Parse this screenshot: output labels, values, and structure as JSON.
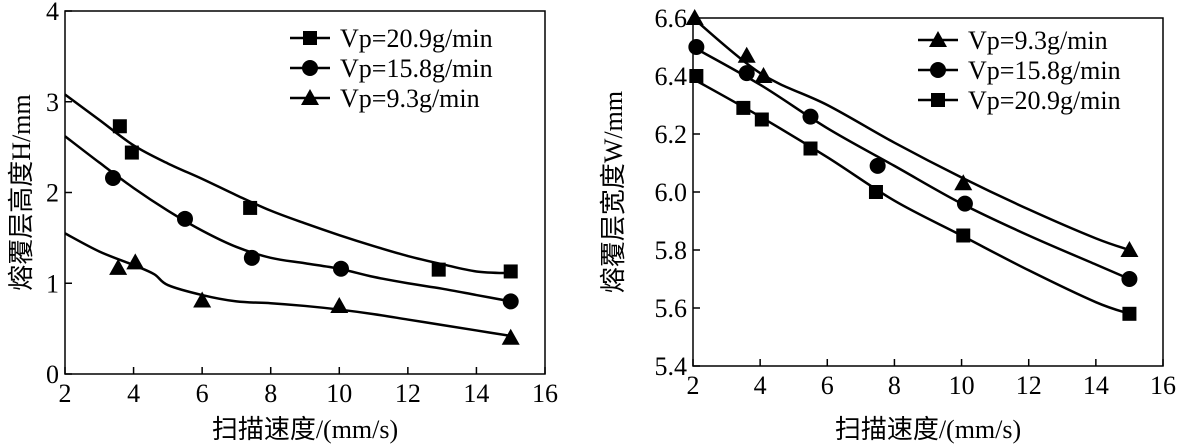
{
  "chart_data": [
    {
      "type": "line",
      "title": "",
      "xlabel": "扫描速度/(mm/s)",
      "ylabel": "熔覆层高度H/mm",
      "xlim": [
        2,
        16
      ],
      "ylim": [
        0,
        4
      ],
      "xticks": [
        2,
        4,
        6,
        8,
        10,
        12,
        14,
        16
      ],
      "yticks": [
        0,
        1,
        2,
        3,
        4
      ],
      "legend": "top-right",
      "series": [
        {
          "name": "Vp=20.9g/min",
          "marker": "square",
          "x": [
            3.6,
            3.95,
            7.4,
            12.9,
            15
          ],
          "y": [
            2.73,
            2.44,
            1.83,
            1.15,
            1.13
          ],
          "fit_x": [
            2,
            3,
            4,
            5,
            6,
            7,
            8,
            9,
            10,
            11,
            12,
            13,
            14,
            15
          ],
          "fit_y": [
            3.08,
            2.8,
            2.52,
            2.32,
            2.15,
            1.97,
            1.8,
            1.66,
            1.53,
            1.41,
            1.3,
            1.21,
            1.13,
            1.11
          ]
        },
        {
          "name": "Vp=15.8g/min",
          "marker": "circle",
          "x": [
            3.4,
            5.5,
            7.45,
            10.05,
            15
          ],
          "y": [
            2.16,
            1.71,
            1.28,
            1.16,
            0.8
          ],
          "fit_x": [
            2,
            3,
            4,
            5,
            6,
            7,
            8,
            9,
            10,
            11,
            12,
            13,
            14,
            15
          ],
          "fit_y": [
            2.62,
            2.33,
            2.05,
            1.8,
            1.58,
            1.4,
            1.28,
            1.22,
            1.16,
            1.07,
            1.0,
            0.94,
            0.87,
            0.8
          ]
        },
        {
          "name": "Vp=9.3g/min",
          "marker": "triangle",
          "x": [
            3.55,
            4.05,
            6,
            10,
            15
          ],
          "y": [
            1.17,
            1.23,
            0.81,
            0.75,
            0.4
          ],
          "fit_x": [
            2,
            3,
            4,
            4.6,
            5,
            6,
            7,
            8,
            9,
            10,
            11,
            12,
            13,
            14,
            15
          ],
          "fit_y": [
            1.55,
            1.35,
            1.2,
            1.1,
            0.98,
            0.87,
            0.8,
            0.78,
            0.75,
            0.71,
            0.66,
            0.6,
            0.54,
            0.48,
            0.42
          ]
        }
      ]
    },
    {
      "type": "line",
      "title": "",
      "xlabel": "扫描速度/(mm/s)",
      "ylabel": "熔覆层宽度W/mm",
      "xlim": [
        2,
        16
      ],
      "ylim": [
        5.4,
        6.6
      ],
      "xticks": [
        2,
        4,
        6,
        8,
        10,
        12,
        14,
        16
      ],
      "yticks": [
        "5.4",
        "5.6",
        "5.8",
        "6.0",
        "6.2",
        "6.4",
        "6.6"
      ],
      "legend": "top-right",
      "series": [
        {
          "name": "Vp=9.3g/min",
          "marker": "triangle",
          "x": [
            2.05,
            3.6,
            4.1,
            10.05,
            15
          ],
          "y": [
            6.6,
            6.47,
            6.4,
            6.03,
            5.8
          ],
          "fit_x": [
            2,
            4,
            6,
            8,
            10,
            12,
            14,
            15
          ],
          "fit_y": [
            6.6,
            6.41,
            6.3,
            6.17,
            6.05,
            5.94,
            5.84,
            5.8
          ]
        },
        {
          "name": "Vp=15.8g/min",
          "marker": "circle",
          "x": [
            2.1,
            3.6,
            5.5,
            7.5,
            10.1,
            15
          ],
          "y": [
            6.5,
            6.41,
            6.26,
            6.09,
            5.96,
            5.7
          ],
          "fit_x": [
            2,
            4,
            6,
            8,
            10,
            12,
            14,
            15
          ],
          "fit_y": [
            6.5,
            6.37,
            6.22,
            6.09,
            5.96,
            5.85,
            5.75,
            5.7
          ]
        },
        {
          "name": "Vp=20.9g/min",
          "marker": "square",
          "x": [
            2.1,
            3.5,
            4.05,
            5.5,
            7.45,
            10.05,
            15
          ],
          "y": [
            6.4,
            6.29,
            6.25,
            6.15,
            6.0,
            5.85,
            5.58
          ],
          "fit_x": [
            2,
            4,
            6,
            8,
            10,
            12,
            14,
            15
          ],
          "fit_y": [
            6.39,
            6.26,
            6.12,
            5.97,
            5.85,
            5.73,
            5.62,
            5.58
          ]
        }
      ]
    }
  ]
}
